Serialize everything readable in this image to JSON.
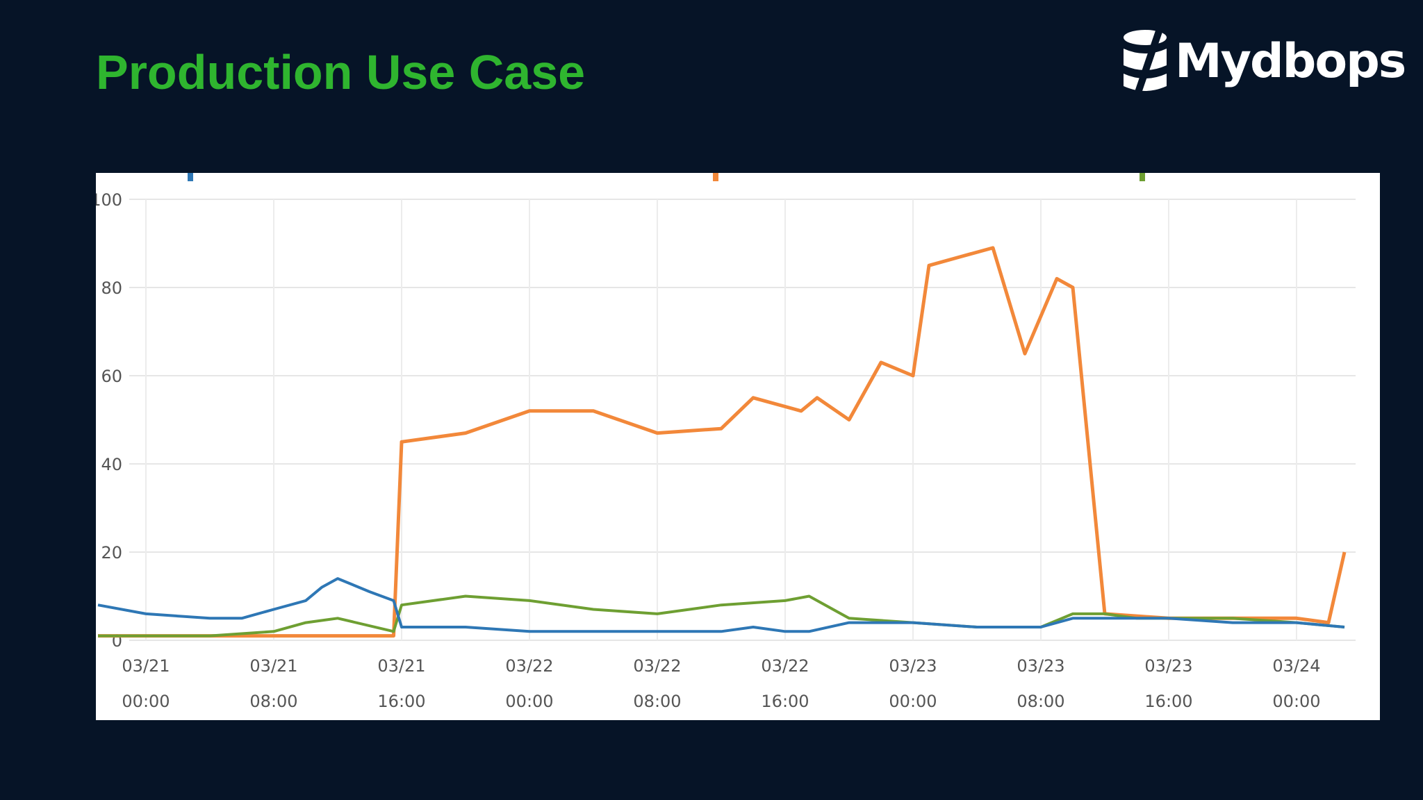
{
  "slide": {
    "title": "Production Use Case",
    "brand": "Mydbops",
    "brand_icon": "mydbops-logo-icon"
  },
  "colors": {
    "background": "#061427",
    "title": "#2fb52f",
    "series_blue": "#2e77b5",
    "series_orange": "#f2883a",
    "series_green": "#6e9f32"
  },
  "chart_data": {
    "type": "line",
    "title": "",
    "xlabel": "",
    "ylabel": "",
    "ylim": [
      0,
      100
    ],
    "yticks": [
      0,
      20,
      40,
      60,
      80,
      100
    ],
    "ytick_labels": [
      "0",
      "20",
      "40",
      "60",
      "80",
      "100"
    ],
    "xlim": [
      "03/20 20:00",
      "03/24 02:00"
    ],
    "xtick_labels": [
      {
        "date": "03/21",
        "time": "00:00"
      },
      {
        "date": "03/21",
        "time": "08:00"
      },
      {
        "date": "03/21",
        "time": "16:00"
      },
      {
        "date": "03/22",
        "time": "00:00"
      },
      {
        "date": "03/22",
        "time": "08:00"
      },
      {
        "date": "03/22",
        "time": "16:00"
      },
      {
        "date": "03/23",
        "time": "00:00"
      },
      {
        "date": "03/23",
        "time": "08:00"
      },
      {
        "date": "03/23",
        "time": "16:00"
      },
      {
        "date": "03/24",
        "time": "00:00"
      }
    ],
    "grid": true,
    "legend": "top, cut off",
    "series": [
      {
        "color": "#2e77b5",
        "x": [
          "03/20 21:00",
          "03/21 00:00",
          "03/21 04:00",
          "03/21 06:00",
          "03/21 08:00",
          "03/21 10:00",
          "03/21 11:00",
          "03/21 12:00",
          "03/21 14:00",
          "03/21 15:30",
          "03/21 16:00",
          "03/21 20:00",
          "03/22 00:00",
          "03/22 04:00",
          "03/22 08:00",
          "03/22 12:00",
          "03/22 14:00",
          "03/22 16:00",
          "03/22 17:30",
          "03/22 20:00",
          "03/23 00:00",
          "03/23 04:00",
          "03/23 08:00",
          "03/23 10:00",
          "03/23 12:00",
          "03/23 16:00",
          "03/23 20:00",
          "03/24 00:00",
          "03/24 03:00"
        ],
        "y": [
          8,
          6,
          5,
          5,
          7,
          9,
          12,
          14,
          11,
          9,
          3,
          3,
          2,
          2,
          2,
          2,
          3,
          2,
          2,
          4,
          4,
          3,
          3,
          5,
          5,
          5,
          4,
          4,
          3
        ]
      },
      {
        "color": "#f2883a",
        "x": [
          "03/20 21:00",
          "03/21 08:00",
          "03/21 15:30",
          "03/21 16:00",
          "03/21 20:00",
          "03/22 00:00",
          "03/22 04:00",
          "03/22 08:00",
          "03/22 12:00",
          "03/22 14:00",
          "03/22 17:00",
          "03/22 18:00",
          "03/22 20:00",
          "03/22 22:00",
          "03/23 00:00",
          "03/23 01:00",
          "03/23 03:00",
          "03/23 05:00",
          "03/23 07:00",
          "03/23 09:00",
          "03/23 10:00",
          "03/23 12:00",
          "03/23 16:00",
          "03/23 20:00",
          "03/24 00:00",
          "03/24 02:00",
          "03/24 03:00"
        ],
        "y": [
          1,
          1,
          1,
          45,
          47,
          52,
          52,
          47,
          48,
          55,
          52,
          55,
          50,
          63,
          60,
          85,
          87,
          89,
          65,
          82,
          80,
          6,
          5,
          5,
          5,
          4,
          20
        ]
      },
      {
        "color": "#6e9f32",
        "x": [
          "03/20 21:00",
          "03/21 04:00",
          "03/21 08:00",
          "03/21 10:00",
          "03/21 12:00",
          "03/21 15:30",
          "03/21 16:00",
          "03/21 20:00",
          "03/22 00:00",
          "03/22 04:00",
          "03/22 08:00",
          "03/22 12:00",
          "03/22 16:00",
          "03/22 17:30",
          "03/22 20:00",
          "03/23 00:00",
          "03/23 04:00",
          "03/23 08:00",
          "03/23 10:00",
          "03/23 12:00",
          "03/23 14:00",
          "03/23 16:00",
          "03/23 20:00",
          "03/24 00:00",
          "03/24 03:00"
        ],
        "y": [
          1,
          1,
          2,
          4,
          5,
          2,
          8,
          10,
          9,
          7,
          6,
          8,
          9,
          10,
          5,
          4,
          3,
          3,
          6,
          6,
          5,
          5,
          5,
          4,
          3
        ]
      }
    ]
  }
}
